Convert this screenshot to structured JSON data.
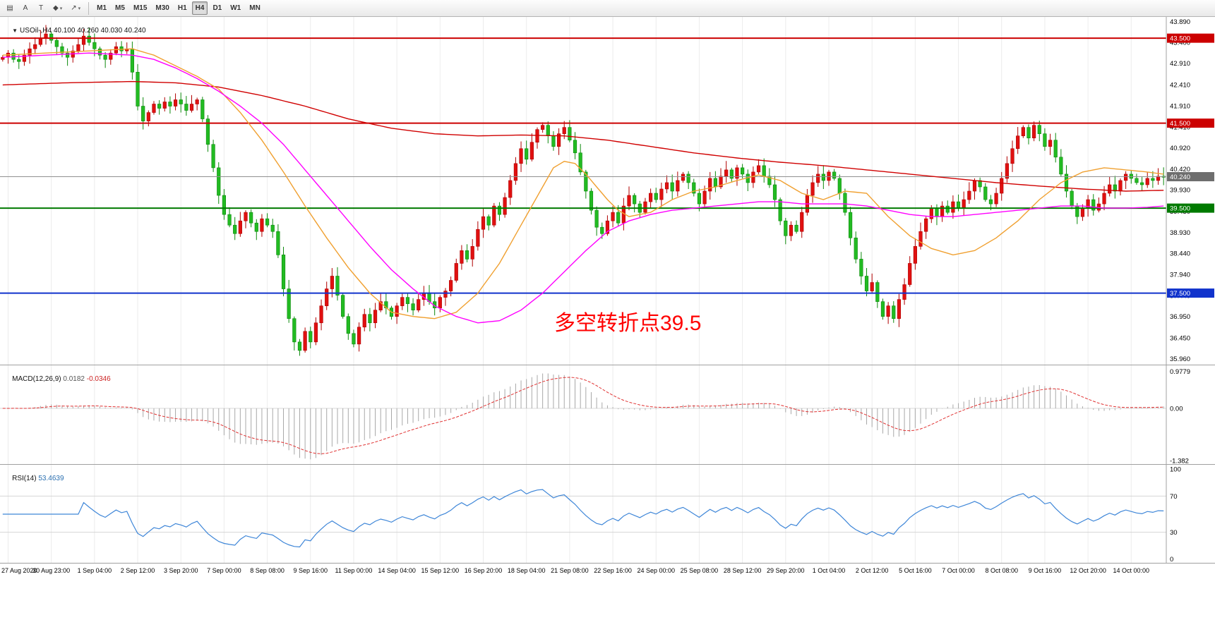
{
  "toolbar": {
    "left_buttons": [
      {
        "name": "charts-grid-icon",
        "glyph": "▤",
        "caret": false
      },
      {
        "name": "arrow-tool-button",
        "glyph": "A",
        "caret": false
      },
      {
        "name": "text-tool-button",
        "glyph": "T",
        "caret": false
      },
      {
        "name": "shapes-tool-icon",
        "glyph": "◆",
        "caret": true
      },
      {
        "name": "lines-tool-icon",
        "glyph": "↗",
        "caret": true
      }
    ],
    "timeframes": [
      {
        "label": "M1",
        "active": false
      },
      {
        "label": "M5",
        "active": false
      },
      {
        "label": "M15",
        "active": false
      },
      {
        "label": "M30",
        "active": false
      },
      {
        "label": "H1",
        "active": false
      },
      {
        "label": "H4",
        "active": true
      },
      {
        "label": "D1",
        "active": false
      },
      {
        "label": "W1",
        "active": false
      },
      {
        "label": "MN",
        "active": false
      }
    ]
  },
  "chart": {
    "header": {
      "expander": "▼",
      "symbol": "USOil-,H4",
      "ohlc": "40.100 40.260 40.030 40.240"
    },
    "annotation": {
      "text": "多空转折点39.5",
      "color": "#FF0000"
    }
  },
  "macd_panel": {
    "name": "MACD(12,26,9)",
    "main_value": "0.0182",
    "signal_value": "-0.0346"
  },
  "rsi_panel": {
    "name": "RSI(14)",
    "value": "53.4639"
  },
  "chart_data": {
    "type": "candlestick",
    "symbol": "USOil-",
    "timeframe": "H4",
    "ohlc_display": {
      "open": "40.100",
      "high": "40.260",
      "low": "40.030",
      "close": "40.240"
    },
    "colors": {
      "up_candle": "#e01010",
      "up_stroke": "#b00000",
      "down_candle": "#22bb22",
      "down_stroke": "#0d8a0d",
      "grid": "#ececec",
      "axis_line": "#a0a0a0",
      "macd_hist": "#a8a8a8",
      "macd_signal": "#e03030",
      "rsi_line": "#3e86d8",
      "current_price_line": "#909090"
    },
    "y_range": [
      35.8,
      44.0
    ],
    "price_ticks": [
      "43.890",
      "43.400",
      "42.910",
      "42.410",
      "41.910",
      "41.410",
      "40.920",
      "40.420",
      "39.930",
      "39.430",
      "38.930",
      "38.440",
      "37.940",
      "37.440",
      "36.950",
      "36.450",
      "35.960"
    ],
    "hlines": [
      {
        "price": 43.5,
        "color": "#cc0000",
        "width": 2,
        "label": "43.500",
        "badge": "#cc0000"
      },
      {
        "price": 41.5,
        "color": "#cc0000",
        "width": 2,
        "label": "41.500",
        "badge": "#cc0000"
      },
      {
        "price": 40.24,
        "color": "#909090",
        "width": 1,
        "label": "40.240",
        "badge": "#6e6e6e"
      },
      {
        "price": 39.5,
        "color": "#007a00",
        "width": 2,
        "label": "39.500",
        "badge": "#007a00"
      },
      {
        "price": 37.5,
        "color": "#1133cc",
        "width": 2,
        "label": "37.500",
        "badge": "#1133cc"
      }
    ],
    "closes": [
      43.05,
      43.15,
      43.0,
      42.95,
      43.1,
      43.25,
      43.35,
      43.5,
      43.6,
      43.45,
      43.3,
      43.15,
      43.05,
      43.2,
      43.35,
      43.55,
      43.4,
      43.25,
      43.1,
      43.0,
      43.15,
      43.3,
      43.2,
      43.25,
      42.7,
      41.9,
      41.55,
      41.75,
      41.95,
      41.85,
      42.0,
      41.9,
      42.05,
      41.95,
      41.8,
      41.95,
      42.05,
      41.6,
      41.0,
      40.45,
      39.8,
      39.35,
      39.1,
      38.9,
      39.2,
      39.4,
      39.15,
      38.95,
      39.25,
      39.1,
      38.95,
      38.4,
      37.6,
      36.9,
      36.35,
      36.15,
      36.6,
      36.35,
      36.8,
      37.2,
      37.6,
      37.9,
      37.45,
      36.95,
      36.55,
      36.3,
      36.7,
      37.0,
      36.8,
      37.1,
      37.3,
      37.15,
      36.95,
      37.2,
      37.4,
      37.25,
      37.1,
      37.35,
      37.5,
      37.3,
      37.15,
      37.4,
      37.55,
      37.8,
      38.2,
      38.5,
      38.3,
      38.6,
      39.0,
      39.3,
      39.1,
      39.55,
      39.35,
      39.75,
      40.15,
      40.55,
      40.9,
      40.65,
      41.05,
      41.35,
      41.45,
      41.2,
      40.95,
      41.25,
      41.4,
      41.1,
      40.8,
      40.35,
      39.9,
      39.45,
      39.05,
      38.9,
      39.2,
      39.4,
      39.15,
      39.55,
      39.8,
      39.6,
      39.4,
      39.65,
      39.85,
      39.7,
      39.95,
      40.1,
      39.9,
      40.15,
      40.3,
      40.1,
      39.85,
      39.6,
      39.9,
      40.2,
      40.0,
      40.25,
      40.4,
      40.2,
      40.45,
      40.3,
      40.1,
      40.35,
      40.5,
      40.25,
      40.05,
      39.7,
      39.2,
      38.85,
      39.1,
      38.95,
      39.4,
      39.8,
      40.1,
      40.3,
      40.15,
      40.35,
      40.2,
      39.85,
      39.4,
      38.8,
      38.3,
      37.9,
      37.55,
      37.75,
      37.3,
      36.95,
      37.2,
      36.9,
      37.35,
      37.7,
      38.2,
      38.6,
      38.95,
      39.25,
      39.5,
      39.3,
      39.55,
      39.4,
      39.65,
      39.5,
      39.7,
      39.9,
      40.15,
      40.0,
      39.7,
      39.6,
      39.85,
      40.2,
      40.55,
      40.9,
      41.2,
      41.4,
      41.15,
      41.45,
      41.25,
      40.95,
      41.1,
      40.7,
      40.3,
      39.9,
      39.55,
      39.3,
      39.5,
      39.7,
      39.45,
      39.6,
      39.85,
      40.05,
      39.9,
      40.15,
      40.3,
      40.2,
      40.1,
      40.05,
      40.2,
      40.15,
      40.25,
      40.24
    ],
    "moving_averages": [
      {
        "name": "slow-ma",
        "color": "#d00000",
        "points": [
          [
            0,
            42.4
          ],
          [
            12,
            42.45
          ],
          [
            24,
            42.48
          ],
          [
            32,
            42.45
          ],
          [
            40,
            42.35
          ],
          [
            48,
            42.15
          ],
          [
            56,
            41.9
          ],
          [
            64,
            41.6
          ],
          [
            72,
            41.38
          ],
          [
            80,
            41.25
          ],
          [
            88,
            41.2
          ],
          [
            96,
            41.22
          ],
          [
            104,
            41.2
          ],
          [
            112,
            41.1
          ],
          [
            120,
            40.95
          ],
          [
            128,
            40.8
          ],
          [
            136,
            40.68
          ],
          [
            144,
            40.58
          ],
          [
            152,
            40.5
          ],
          [
            160,
            40.4
          ],
          [
            168,
            40.3
          ],
          [
            176,
            40.2
          ],
          [
            184,
            40.1
          ],
          [
            192,
            40.02
          ],
          [
            200,
            39.95
          ],
          [
            208,
            39.9
          ],
          [
            215,
            39.92
          ]
        ]
      },
      {
        "name": "medium-ma",
        "color": "#f0a030",
        "points": [
          [
            0,
            43.1
          ],
          [
            8,
            43.15
          ],
          [
            16,
            43.2
          ],
          [
            24,
            43.25
          ],
          [
            28,
            43.1
          ],
          [
            32,
            42.85
          ],
          [
            36,
            42.6
          ],
          [
            40,
            42.3
          ],
          [
            44,
            41.75
          ],
          [
            48,
            41.1
          ],
          [
            52,
            40.35
          ],
          [
            56,
            39.55
          ],
          [
            60,
            38.8
          ],
          [
            64,
            38.1
          ],
          [
            68,
            37.5
          ],
          [
            72,
            37.05
          ],
          [
            76,
            36.95
          ],
          [
            80,
            36.9
          ],
          [
            84,
            37.05
          ],
          [
            88,
            37.5
          ],
          [
            92,
            38.2
          ],
          [
            96,
            39.1
          ],
          [
            100,
            40.0
          ],
          [
            102,
            40.45
          ],
          [
            104,
            40.6
          ],
          [
            106,
            40.55
          ],
          [
            108,
            40.3
          ],
          [
            110,
            40.0
          ],
          [
            112,
            39.7
          ],
          [
            114,
            39.45
          ],
          [
            116,
            39.3
          ],
          [
            120,
            39.4
          ],
          [
            124,
            39.7
          ],
          [
            128,
            39.9
          ],
          [
            132,
            40.0
          ],
          [
            136,
            40.15
          ],
          [
            140,
            40.28
          ],
          [
            144,
            40.15
          ],
          [
            148,
            39.85
          ],
          [
            152,
            39.7
          ],
          [
            156,
            39.9
          ],
          [
            160,
            39.85
          ],
          [
            164,
            39.3
          ],
          [
            168,
            38.85
          ],
          [
            172,
            38.55
          ],
          [
            176,
            38.4
          ],
          [
            180,
            38.5
          ],
          [
            184,
            38.8
          ],
          [
            188,
            39.2
          ],
          [
            192,
            39.7
          ],
          [
            196,
            40.1
          ],
          [
            200,
            40.35
          ],
          [
            204,
            40.45
          ],
          [
            208,
            40.4
          ],
          [
            212,
            40.35
          ],
          [
            215,
            40.3
          ]
        ]
      },
      {
        "name": "fast-ma",
        "color": "#ff00ff",
        "points": [
          [
            0,
            43.05
          ],
          [
            8,
            43.1
          ],
          [
            16,
            43.15
          ],
          [
            24,
            43.1
          ],
          [
            28,
            43.0
          ],
          [
            32,
            42.8
          ],
          [
            36,
            42.55
          ],
          [
            40,
            42.25
          ],
          [
            44,
            41.9
          ],
          [
            48,
            41.5
          ],
          [
            52,
            41.0
          ],
          [
            56,
            40.4
          ],
          [
            60,
            39.8
          ],
          [
            64,
            39.2
          ],
          [
            68,
            38.6
          ],
          [
            72,
            38.05
          ],
          [
            76,
            37.6
          ],
          [
            80,
            37.2
          ],
          [
            84,
            36.95
          ],
          [
            88,
            36.8
          ],
          [
            92,
            36.85
          ],
          [
            96,
            37.1
          ],
          [
            100,
            37.5
          ],
          [
            104,
            38.0
          ],
          [
            108,
            38.5
          ],
          [
            112,
            38.95
          ],
          [
            116,
            39.2
          ],
          [
            120,
            39.35
          ],
          [
            124,
            39.45
          ],
          [
            128,
            39.5
          ],
          [
            132,
            39.55
          ],
          [
            136,
            39.6
          ],
          [
            140,
            39.65
          ],
          [
            144,
            39.65
          ],
          [
            148,
            39.6
          ],
          [
            152,
            39.6
          ],
          [
            156,
            39.6
          ],
          [
            160,
            39.55
          ],
          [
            164,
            39.45
          ],
          [
            168,
            39.35
          ],
          [
            172,
            39.3
          ],
          [
            176,
            39.3
          ],
          [
            180,
            39.35
          ],
          [
            184,
            39.4
          ],
          [
            188,
            39.45
          ],
          [
            192,
            39.5
          ],
          [
            196,
            39.55
          ],
          [
            200,
            39.55
          ],
          [
            204,
            39.5
          ],
          [
            208,
            39.5
          ],
          [
            212,
            39.52
          ],
          [
            215,
            39.55
          ]
        ]
      }
    ],
    "macd": {
      "fast": 12,
      "slow": 26,
      "signal": 9,
      "main_last": 0.0182,
      "signal_last": -0.0346,
      "ticks": [
        {
          "value": 0.9779,
          "label": "0.9779"
        },
        {
          "value": 0,
          "label": "0.00"
        },
        {
          "value": -1.382,
          "label": "-1.382"
        }
      ]
    },
    "rsi": {
      "period": 14,
      "last": 53.4639,
      "levels": [
        70,
        30
      ],
      "ticks": [
        {
          "value": 100,
          "label": "100"
        },
        {
          "value": 70,
          "label": "70"
        },
        {
          "value": 30,
          "label": "30"
        },
        {
          "value": 0,
          "label": "0"
        }
      ]
    },
    "time_labels": [
      "27 Aug 2020",
      "30 Aug 23:00",
      "1 Sep 04:00",
      "2 Sep 12:00",
      "3 Sep 20:00",
      "7 Sep 00:00",
      "8 Sep 08:00",
      "9 Sep 16:00",
      "11 Sep 00:00",
      "14 Sep 04:00",
      "15 Sep 12:00",
      "16 Sep 20:00",
      "18 Sep 04:00",
      "21 Sep 08:00",
      "22 Sep 16:00",
      "24 Sep 00:00",
      "25 Sep 08:00",
      "28 Sep 12:00",
      "29 Sep 20:00",
      "1 Oct 04:00",
      "2 Oct 12:00",
      "5 Oct 16:00",
      "7 Oct 00:00",
      "8 Oct 08:00",
      "9 Oct 16:00",
      "12 Oct 20:00",
      "14 Oct 00:00"
    ]
  }
}
